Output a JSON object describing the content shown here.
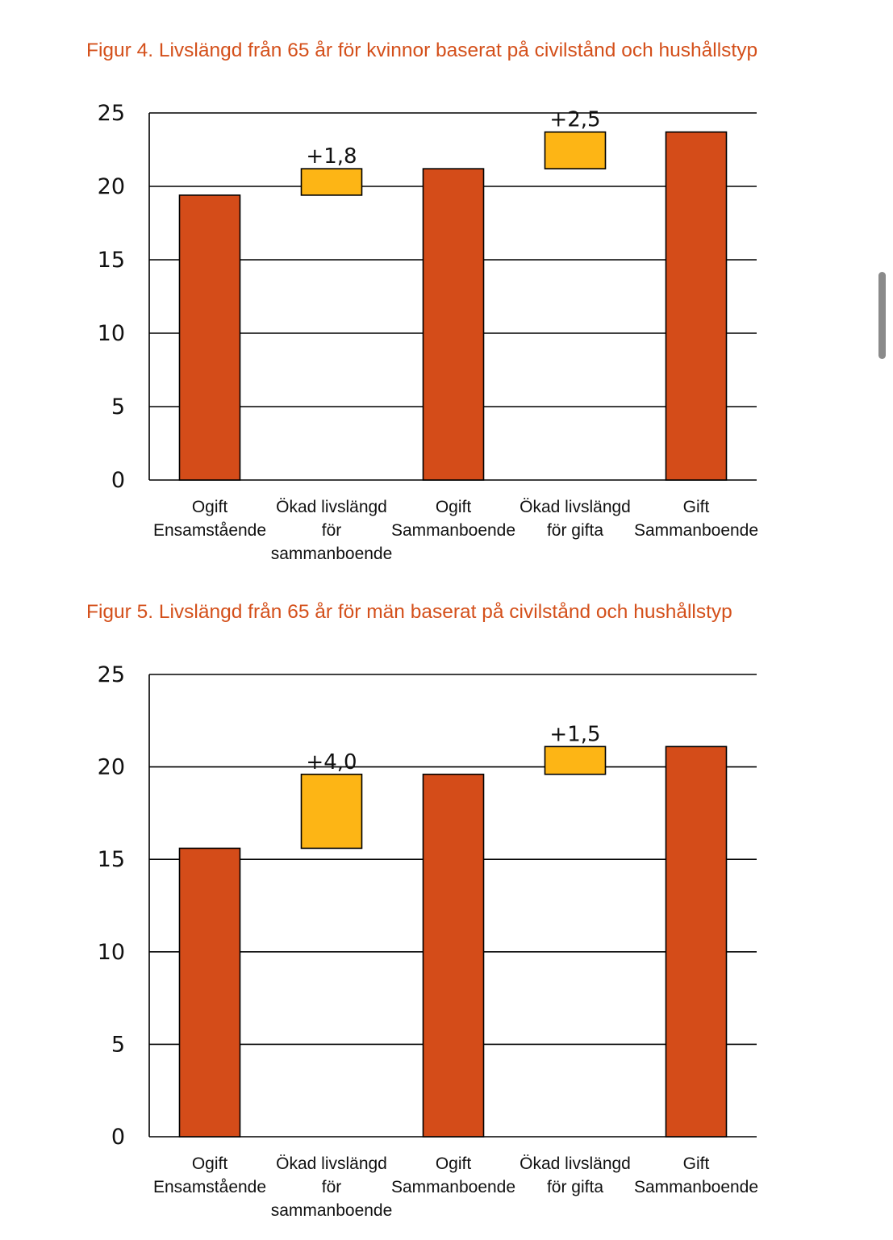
{
  "chart_data": [
    {
      "type": "bar",
      "subtype": "waterfall",
      "title": "Figur 4. Livslängd från 65 år för kvinnor baserat på civilstånd och hushållstyp",
      "categories": [
        [
          "Ogift",
          "Ensamstående"
        ],
        [
          "Ökad livslängd",
          "för",
          "sammanboende"
        ],
        [
          "Ogift",
          "Sammanboende"
        ],
        [
          "Ökad livslängd",
          "för gifta"
        ],
        [
          "Gift",
          "Sammanboende"
        ]
      ],
      "bars": [
        {
          "kind": "total",
          "base": 0,
          "value": 19.4,
          "label": ""
        },
        {
          "kind": "increase",
          "base": 19.4,
          "value": 1.8,
          "label": "+1,8"
        },
        {
          "kind": "total",
          "base": 0,
          "value": 21.2,
          "label": ""
        },
        {
          "kind": "increase",
          "base": 21.2,
          "value": 2.5,
          "label": "+2,5"
        },
        {
          "kind": "total",
          "base": 0,
          "value": 23.7,
          "label": ""
        }
      ],
      "ylim": [
        0,
        25
      ],
      "yticks": [
        0,
        5,
        10,
        15,
        20,
        25
      ],
      "xlabel": "",
      "ylabel": "",
      "grid": true,
      "colors": {
        "total": "#d44c19",
        "increase": "#fdb515",
        "outline": "#000000"
      }
    },
    {
      "type": "bar",
      "subtype": "waterfall",
      "title": "Figur 5. Livslängd från 65 år för män baserat på civilstånd och hushållstyp",
      "categories": [
        [
          "Ogift",
          "Ensamstående"
        ],
        [
          "Ökad livslängd",
          "för",
          "sammanboende"
        ],
        [
          "Ogift",
          "Sammanboende"
        ],
        [
          "Ökad livslängd",
          "för gifta"
        ],
        [
          "Gift",
          "Sammanboende"
        ]
      ],
      "bars": [
        {
          "kind": "total",
          "base": 0,
          "value": 15.6,
          "label": ""
        },
        {
          "kind": "increase",
          "base": 15.6,
          "value": 4.0,
          "label": "+4,0"
        },
        {
          "kind": "total",
          "base": 0,
          "value": 19.6,
          "label": ""
        },
        {
          "kind": "increase",
          "base": 19.6,
          "value": 1.5,
          "label": "+1,5"
        },
        {
          "kind": "total",
          "base": 0,
          "value": 21.1,
          "label": ""
        }
      ],
      "ylim": [
        0,
        25
      ],
      "yticks": [
        0,
        5,
        10,
        15,
        20,
        25
      ],
      "xlabel": "",
      "ylabel": "",
      "grid": true,
      "colors": {
        "total": "#d44c19",
        "increase": "#fdb515",
        "outline": "#000000"
      }
    }
  ]
}
